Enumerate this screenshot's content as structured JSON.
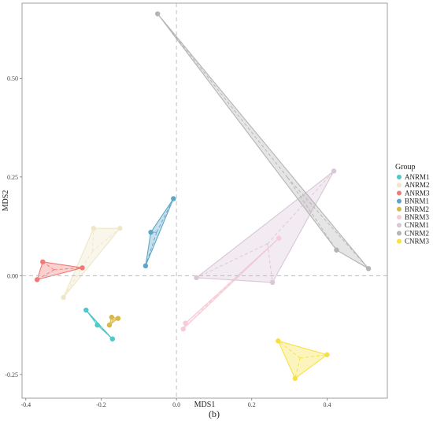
{
  "chart_data": {
    "type": "scatter",
    "title": "",
    "xlabel": "MDS1",
    "ylabel": "MDS2",
    "caption": "(b)",
    "xlim": [
      -0.41,
      0.56
    ],
    "ylim": [
      -0.31,
      0.69
    ],
    "x_ticks": [
      -0.4,
      -0.2,
      0.0,
      0.2,
      0.4
    ],
    "x_tick_labels": [
      "-0.4",
      "-0.2",
      "0.0",
      "0.2",
      "0.4"
    ],
    "y_ticks": [
      -0.25,
      0.0,
      0.25,
      0.5
    ],
    "y_tick_labels": [
      "-0.25",
      "0.00",
      "0.25",
      "0.50"
    ],
    "grid": false,
    "reference_lines": {
      "x": 0,
      "y": 0
    },
    "legend_title": "Group",
    "legend_position": "right",
    "series": [
      {
        "name": "ANRM1",
        "color": "#4ec9cb",
        "points": [
          [
            -0.24,
            -0.087
          ],
          [
            -0.21,
            -0.125
          ],
          [
            -0.17,
            -0.16
          ]
        ]
      },
      {
        "name": "ANRM2",
        "color": "#efe6c6",
        "points": [
          [
            -0.3,
            -0.055
          ],
          [
            -0.22,
            0.12
          ],
          [
            -0.15,
            0.12
          ]
        ]
      },
      {
        "name": "ANRM3",
        "color": "#f07a76",
        "points": [
          [
            -0.37,
            -0.01
          ],
          [
            -0.355,
            0.035
          ],
          [
            -0.25,
            0.02
          ]
        ]
      },
      {
        "name": "BNRM1",
        "color": "#5ea6c8",
        "points": [
          [
            -0.082,
            0.025
          ],
          [
            -0.068,
            0.11
          ],
          [
            -0.008,
            0.195
          ]
        ]
      },
      {
        "name": "BNRM2",
        "color": "#d6b94a",
        "points": [
          [
            -0.178,
            -0.125
          ],
          [
            -0.172,
            -0.105
          ],
          [
            -0.155,
            -0.108
          ]
        ]
      },
      {
        "name": "BNRM3",
        "color": "#f8cbd6",
        "points": [
          [
            0.018,
            -0.135
          ],
          [
            0.024,
            -0.12
          ],
          [
            0.272,
            0.095
          ]
        ]
      },
      {
        "name": "CNRM1",
        "color": "#d9c6d6",
        "points": [
          [
            0.053,
            -0.005
          ],
          [
            0.255,
            -0.017
          ],
          [
            0.418,
            0.265
          ]
        ]
      },
      {
        "name": "CNRM2",
        "color": "#b4b4b4",
        "points": [
          [
            -0.05,
            0.663
          ],
          [
            0.425,
            0.065
          ],
          [
            0.51,
            0.018
          ]
        ]
      },
      {
        "name": "CNRM3",
        "color": "#f7e043",
        "points": [
          [
            0.27,
            -0.165
          ],
          [
            0.315,
            -0.26
          ],
          [
            0.4,
            -0.2
          ]
        ]
      }
    ]
  }
}
